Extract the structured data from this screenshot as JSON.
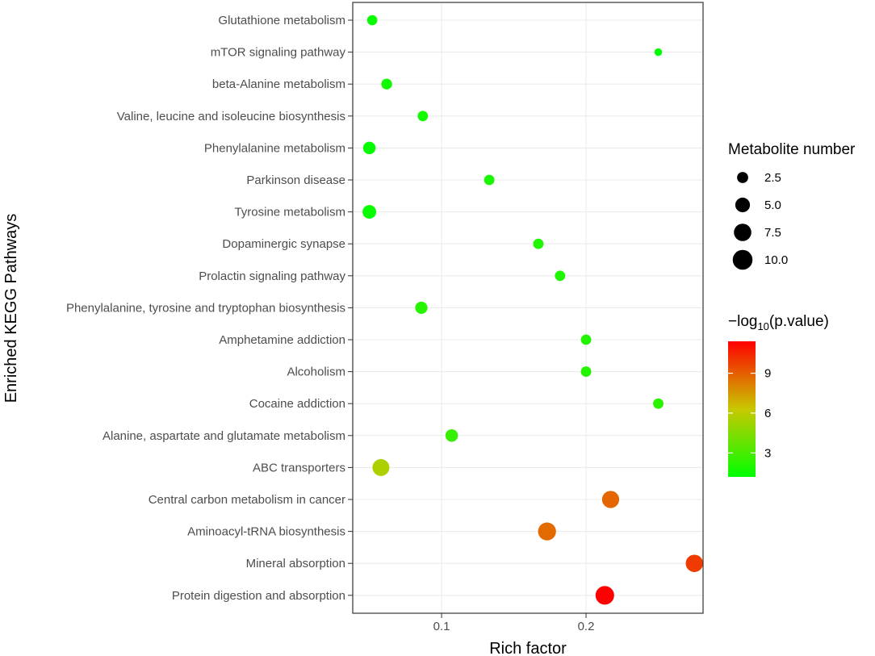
{
  "chart_data": {
    "type": "scatter",
    "title": "",
    "xlabel": "Rich factor",
    "ylabel": "Enriched KEGG Pathways",
    "xlim": [
      0.0385,
      0.281
    ],
    "xticks": [
      0.1,
      0.2
    ],
    "xtick_labels": [
      "0.1",
      "0.2"
    ],
    "grid": true,
    "points": [
      {
        "pathway": "Glutathione metabolism",
        "rich_factor": 0.052,
        "metabolite_number": 2.0,
        "neg_log10_p": 1.4
      },
      {
        "pathway": "mTOR signaling pathway",
        "rich_factor": 0.25,
        "metabolite_number": 0.9,
        "neg_log10_p": 1.2
      },
      {
        "pathway": "beta-Alanine metabolism",
        "rich_factor": 0.062,
        "metabolite_number": 2.3,
        "neg_log10_p": 1.6
      },
      {
        "pathway": "Valine, leucine and isoleucine biosynthesis",
        "rich_factor": 0.087,
        "metabolite_number": 2.1,
        "neg_log10_p": 1.7
      },
      {
        "pathway": "Phenylalanine metabolism",
        "rich_factor": 0.05,
        "metabolite_number": 3.4,
        "neg_log10_p": 1.3
      },
      {
        "pathway": "Parkinson disease",
        "rich_factor": 0.133,
        "metabolite_number": 2.1,
        "neg_log10_p": 1.9
      },
      {
        "pathway": "Tyrosine metabolism",
        "rich_factor": 0.05,
        "metabolite_number": 4.2,
        "neg_log10_p": 1.4
      },
      {
        "pathway": "Dopaminergic synapse",
        "rich_factor": 0.167,
        "metabolite_number": 2.1,
        "neg_log10_p": 2.0
      },
      {
        "pathway": "Prolactin signaling pathway",
        "rich_factor": 0.182,
        "metabolite_number": 2.1,
        "neg_log10_p": 2.0
      },
      {
        "pathway": "Phenylalanine, tyrosine and tryptophan biosynthesis",
        "rich_factor": 0.086,
        "metabolite_number": 3.2,
        "neg_log10_p": 2.2
      },
      {
        "pathway": "Amphetamine addiction",
        "rich_factor": 0.2,
        "metabolite_number": 2.1,
        "neg_log10_p": 2.1
      },
      {
        "pathway": "Alcoholism",
        "rich_factor": 0.2,
        "metabolite_number": 2.1,
        "neg_log10_p": 2.1
      },
      {
        "pathway": "Cocaine addiction",
        "rich_factor": 0.25,
        "metabolite_number": 2.1,
        "neg_log10_p": 2.3
      },
      {
        "pathway": "Alanine, aspartate and glutamate metabolism",
        "rich_factor": 0.107,
        "metabolite_number": 3.4,
        "neg_log10_p": 2.6
      },
      {
        "pathway": "ABC transporters",
        "rich_factor": 0.058,
        "metabolite_number": 7.0,
        "neg_log10_p": 5.6
      },
      {
        "pathway": "Central carbon metabolism in cancer",
        "rich_factor": 0.217,
        "metabolite_number": 7.2,
        "neg_log10_p": 8.8
      },
      {
        "pathway": "Aminoacyl-tRNA biosynthesis",
        "rich_factor": 0.173,
        "metabolite_number": 8.0,
        "neg_log10_p": 8.7
      },
      {
        "pathway": "Mineral absorption",
        "rich_factor": 0.275,
        "metabolite_number": 7.4,
        "neg_log10_p": 9.9
      },
      {
        "pathway": "Protein digestion and absorption",
        "rich_factor": 0.213,
        "metabolite_number": 8.7,
        "neg_log10_p": 11.4
      }
    ],
    "size_legend": {
      "title": "Metabolite number",
      "values": [
        2.5,
        5.0,
        7.5,
        10.0
      ],
      "labels": [
        "2.5",
        "5.0",
        "7.5",
        "10.0"
      ]
    },
    "color_legend": {
      "title_prefix": "−log",
      "title_subscript": "10",
      "title_suffix": "(p.value)",
      "min": 1.2,
      "max": 11.4,
      "ticks": [
        3,
        6,
        9
      ],
      "tick_labels": [
        "3",
        "6",
        "9"
      ],
      "colors": {
        "low": "#00ff00",
        "mid": "#c8c800",
        "high": "#ff0000"
      }
    }
  }
}
